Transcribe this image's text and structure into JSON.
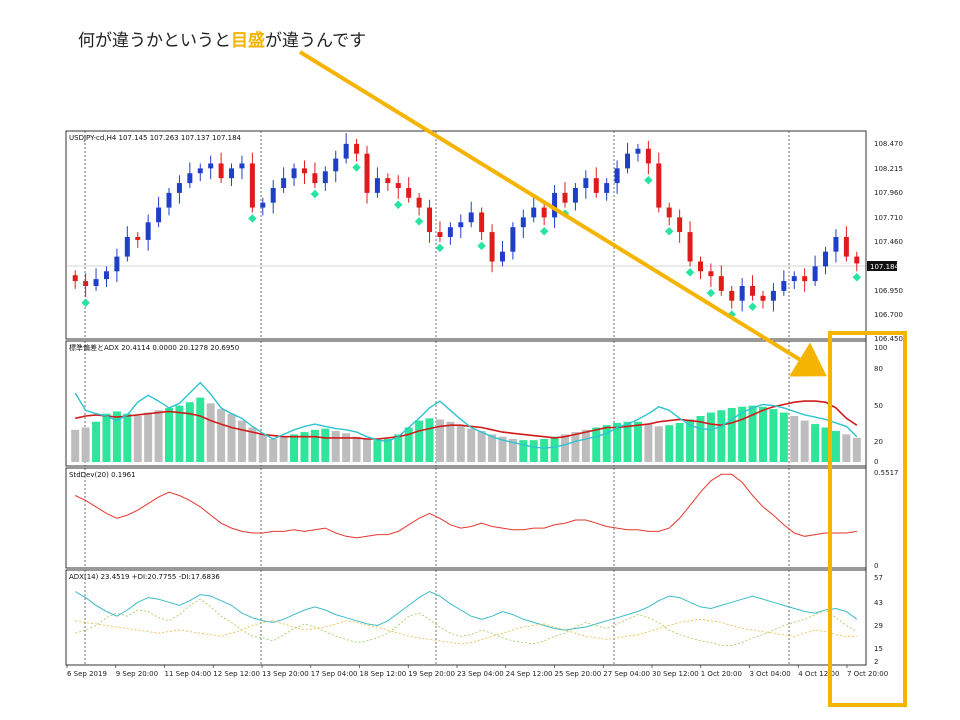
{
  "slide": {
    "title_before": "何が違うかというと",
    "title_highlight": "目盛",
    "title_after": "が違うんです"
  },
  "colors": {
    "bull": "#1f3fc8",
    "bear": "#e01b1b",
    "marker": "#29e3a0",
    "hist_green": "#2ee59a",
    "hist_gray": "#bdbdbd",
    "adx_red": "#d11b1b",
    "adx_cyan": "#2dc3d0",
    "stddev": "#e2392d",
    "adx_main": "#3bbcc6",
    "adx_pdi": "#9bcc55",
    "adx_mdi": "#e8b93a",
    "annotation": "#f5b400"
  },
  "chart_data": [
    {
      "type": "candlestick",
      "title": "USDJPY-cd,H4  107.145 107.263 107.137 107.184",
      "y_ticks": [
        "108.470",
        "108.215",
        "107.960",
        "107.710",
        "107.460",
        "107.184",
        "106.950",
        "106.700",
        "106.450"
      ],
      "current_price": "107.184",
      "ylim": [
        106.45,
        108.47
      ],
      "closes": [
        107.0,
        106.95,
        107.02,
        107.1,
        107.25,
        107.45,
        107.42,
        107.6,
        107.75,
        107.9,
        108.0,
        108.1,
        108.15,
        108.2,
        108.05,
        108.15,
        108.2,
        107.75,
        107.8,
        107.95,
        108.05,
        108.15,
        108.1,
        108.0,
        108.12,
        108.25,
        108.4,
        108.3,
        107.9,
        108.05,
        108.0,
        107.95,
        107.85,
        107.75,
        107.5,
        107.45,
        107.55,
        107.6,
        107.7,
        107.5,
        107.2,
        107.3,
        107.55,
        107.65,
        107.75,
        107.65,
        107.9,
        107.8,
        107.95,
        108.05,
        107.9,
        108.0,
        108.15,
        108.3,
        108.35,
        108.2,
        107.75,
        107.65,
        107.5,
        107.2,
        107.1,
        107.05,
        106.9,
        106.8,
        106.95,
        106.85,
        106.8,
        106.9,
        107.0,
        107.05,
        107.0,
        107.15,
        107.3,
        107.45,
        107.25,
        107.18
      ],
      "x_ticks": [
        "6 Sep 2019",
        "9 Sep 20:00",
        "11 Sep 04:00",
        "12 Sep 12:00",
        "13 Sep 20:00",
        "17 Sep 04:00",
        "18 Sep 12:00",
        "19 Sep 20:00",
        "23 Sep 04:00",
        "24 Sep 12:00",
        "25 Sep 20:00",
        "27 Sep 04:00",
        "30 Sep 12:00",
        "1 Oct 20:00",
        "3 Oct 04:00",
        "4 Oct 12:00",
        "7 Oct 20:00"
      ]
    },
    {
      "type": "bar+line",
      "title": "標準偏差とADX 20.4114 0.0000 20.1278 20.6950",
      "y_ticks": [
        "100",
        "80",
        "50",
        "20",
        "0"
      ],
      "ylim": [
        0,
        100
      ],
      "adx_red": [
        38,
        40,
        41,
        40,
        39,
        40,
        41,
        42,
        43,
        44,
        43,
        42,
        40,
        36,
        33,
        30,
        28,
        26,
        24,
        23,
        22,
        22,
        22,
        22,
        21,
        21,
        21,
        21,
        20,
        20,
        21,
        22,
        24,
        27,
        29,
        31,
        32,
        32,
        31,
        30,
        28,
        26,
        25,
        24,
        23,
        22,
        21,
        22,
        24,
        26,
        28,
        30,
        30,
        31,
        32,
        33,
        35,
        36,
        37,
        36,
        35,
        33,
        32,
        34,
        37,
        41,
        45,
        48,
        50,
        52,
        53,
        53,
        52,
        47,
        38,
        32
      ],
      "adx_cyan": [
        60,
        45,
        42,
        40,
        36,
        41,
        52,
        58,
        53,
        47,
        51,
        60,
        69,
        59,
        47,
        42,
        38,
        31,
        25,
        20,
        24,
        28,
        31,
        33,
        31,
        29,
        28,
        26,
        22,
        19,
        18,
        22,
        30,
        38,
        47,
        53,
        45,
        37,
        30,
        26,
        22,
        19,
        17,
        15,
        13,
        12,
        13,
        15,
        18,
        20,
        22,
        25,
        30,
        33,
        37,
        42,
        48,
        45,
        38,
        32,
        29,
        28,
        31,
        37,
        43,
        47,
        50,
        49,
        47,
        44,
        41,
        39,
        37,
        34,
        31,
        22
      ],
      "hist": [
        28,
        30,
        35,
        42,
        44,
        42,
        40,
        43,
        45,
        47,
        49,
        52,
        56,
        51,
        46,
        42,
        36,
        30,
        24,
        20,
        22,
        24,
        26,
        28,
        29,
        27,
        25,
        22,
        20,
        19,
        20,
        24,
        30,
        36,
        38,
        37,
        35,
        32,
        29,
        27,
        24,
        22,
        20,
        19,
        19,
        20,
        22,
        24,
        26,
        28,
        30,
        32,
        34,
        35,
        35,
        33,
        31,
        32,
        34,
        37,
        40,
        43,
        45,
        47,
        48,
        49,
        48,
        46,
        43,
        40,
        36,
        33,
        30,
        27,
        24,
        21
      ],
      "hist_green": [
        0,
        0,
        1,
        1,
        1,
        1,
        0,
        0,
        0,
        1,
        1,
        1,
        1,
        0,
        0,
        0,
        0,
        0,
        0,
        0,
        0,
        1,
        1,
        1,
        1,
        0,
        0,
        0,
        0,
        1,
        1,
        1,
        1,
        1,
        1,
        0,
        0,
        0,
        0,
        0,
        0,
        0,
        0,
        1,
        1,
        1,
        1,
        0,
        0,
        0,
        1,
        1,
        1,
        1,
        1,
        0,
        0,
        1,
        1,
        1,
        1,
        1,
        1,
        1,
        1,
        1,
        1,
        1,
        1,
        0,
        0,
        1,
        1,
        1,
        0,
        0
      ]
    },
    {
      "type": "line",
      "title": "StdDev(20) 0.1961",
      "y_ticks": [
        "0.5517",
        "0"
      ],
      "ylim": [
        0,
        0.5517
      ],
      "values": [
        0.42,
        0.39,
        0.35,
        0.31,
        0.28,
        0.3,
        0.33,
        0.37,
        0.41,
        0.44,
        0.42,
        0.39,
        0.35,
        0.3,
        0.25,
        0.22,
        0.2,
        0.19,
        0.19,
        0.2,
        0.2,
        0.21,
        0.2,
        0.21,
        0.22,
        0.19,
        0.17,
        0.16,
        0.17,
        0.18,
        0.18,
        0.2,
        0.24,
        0.28,
        0.31,
        0.28,
        0.24,
        0.22,
        0.23,
        0.25,
        0.23,
        0.22,
        0.21,
        0.21,
        0.22,
        0.22,
        0.24,
        0.25,
        0.27,
        0.27,
        0.25,
        0.23,
        0.22,
        0.21,
        0.21,
        0.2,
        0.2,
        0.22,
        0.28,
        0.36,
        0.44,
        0.51,
        0.55,
        0.55,
        0.5,
        0.42,
        0.35,
        0.3,
        0.24,
        0.19,
        0.17,
        0.18,
        0.19,
        0.19,
        0.19,
        0.2
      ]
    },
    {
      "type": "line",
      "title": "ADX(14) 23.4519 +DI:20.7755 -DI:17.6836",
      "y_ticks": [
        "57",
        "43",
        "29",
        "15",
        "2"
      ],
      "ylim": [
        2,
        57
      ],
      "adx": [
        47,
        43,
        38,
        34,
        31,
        35,
        40,
        43,
        42,
        40,
        38,
        41,
        45,
        44,
        41,
        38,
        33,
        30,
        28,
        27,
        29,
        32,
        35,
        37,
        35,
        32,
        30,
        28,
        26,
        25,
        28,
        33,
        38,
        43,
        47,
        44,
        39,
        35,
        31,
        29,
        31,
        34,
        32,
        29,
        27,
        25,
        23,
        22,
        23,
        24,
        26,
        28,
        30,
        32,
        34,
        37,
        41,
        44,
        43,
        40,
        37,
        36,
        38,
        40,
        42,
        44,
        42,
        40,
        38,
        36,
        34,
        33,
        35,
        36,
        34,
        29
      ],
      "plus_di": [
        20,
        22,
        25,
        30,
        33,
        31,
        35,
        34,
        30,
        28,
        32,
        38,
        42,
        37,
        31,
        27,
        22,
        18,
        17,
        15,
        19,
        23,
        26,
        24,
        21,
        18,
        16,
        14,
        15,
        17,
        20,
        25,
        31,
        33,
        29,
        24,
        20,
        18,
        19,
        22,
        20,
        17,
        15,
        14,
        13,
        15,
        18,
        20,
        24,
        27,
        25,
        23,
        26,
        29,
        32,
        30,
        27,
        22,
        19,
        17,
        15,
        14,
        12,
        12,
        14,
        17,
        19,
        22,
        25,
        27,
        29,
        32,
        35,
        30,
        25,
        21
      ],
      "minus_di": [
        28,
        27,
        26,
        25,
        24,
        23,
        22,
        21,
        20,
        21,
        22,
        21,
        20,
        19,
        18,
        20,
        22,
        25,
        27,
        28,
        26,
        24,
        22,
        23,
        24,
        26,
        28,
        27,
        25,
        24,
        22,
        20,
        18,
        17,
        16,
        15,
        14,
        13,
        14,
        16,
        18,
        20,
        22,
        24,
        25,
        26,
        24,
        22,
        20,
        18,
        17,
        16,
        17,
        18,
        19,
        21,
        23,
        25,
        27,
        28,
        29,
        28,
        27,
        25,
        23,
        22,
        21,
        20,
        19,
        18,
        20,
        22,
        21,
        19,
        18,
        18
      ]
    }
  ]
}
